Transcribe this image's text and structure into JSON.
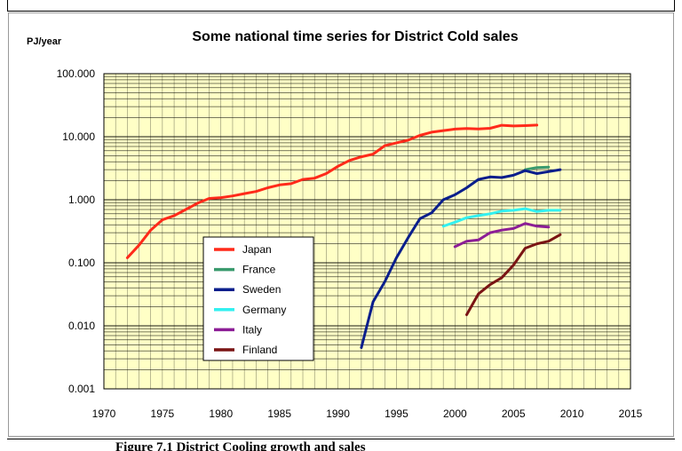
{
  "caption": "Figure 7.1 District Cooling growth and sales",
  "chart_data": {
    "type": "line",
    "title": "Some national time series for District Cold sales",
    "ylabel": "PJ/year",
    "xlabel": "",
    "xlim": [
      1970,
      2015
    ],
    "ylim": [
      0.001,
      100
    ],
    "yscale": "log",
    "grid": true,
    "legend_position": "lower-left",
    "x_ticks": [
      "1970",
      "1975",
      "1980",
      "1985",
      "1990",
      "1995",
      "2000",
      "2005",
      "2010",
      "2015"
    ],
    "y_ticks": [
      "0.001",
      "0.010",
      "0.100",
      "1.000",
      "10.000",
      "100.000"
    ],
    "colors": {
      "plot_background": "#ffffc6",
      "grid": "#000000"
    },
    "series": [
      {
        "name": "Japan",
        "color": "#ff2a1a",
        "points": [
          [
            1972,
            0.12
          ],
          [
            1973,
            0.19
          ],
          [
            1974,
            0.33
          ],
          [
            1975,
            0.48
          ],
          [
            1976,
            0.56
          ],
          [
            1977,
            0.7
          ],
          [
            1978,
            0.88
          ],
          [
            1979,
            1.05
          ],
          [
            1980,
            1.08
          ],
          [
            1981,
            1.15
          ],
          [
            1982,
            1.25
          ],
          [
            1983,
            1.35
          ],
          [
            1984,
            1.55
          ],
          [
            1985,
            1.72
          ],
          [
            1986,
            1.8
          ],
          [
            1987,
            2.1
          ],
          [
            1988,
            2.2
          ],
          [
            1989,
            2.6
          ],
          [
            1990,
            3.4
          ],
          [
            1991,
            4.2
          ],
          [
            1992,
            4.8
          ],
          [
            1993,
            5.3
          ],
          [
            1994,
            7.2
          ],
          [
            1995,
            8.0
          ],
          [
            1996,
            8.8
          ],
          [
            1997,
            10.5
          ],
          [
            1998,
            11.8
          ],
          [
            1999,
            12.5
          ],
          [
            2000,
            13.2
          ],
          [
            2001,
            13.5
          ],
          [
            2002,
            13.3
          ],
          [
            2003,
            13.6
          ],
          [
            2004,
            15.2
          ],
          [
            2005,
            14.8
          ],
          [
            2006,
            15.0
          ],
          [
            2007,
            15.3
          ]
        ]
      },
      {
        "name": "France",
        "color": "#3a9a6e",
        "points": [
          [
            2006,
            3.0
          ],
          [
            2007,
            3.25
          ],
          [
            2008,
            3.3
          ]
        ]
      },
      {
        "name": "Sweden",
        "color": "#0a1e8c",
        "points": [
          [
            1992,
            0.0045
          ],
          [
            1993,
            0.024
          ],
          [
            1994,
            0.05
          ],
          [
            1995,
            0.12
          ],
          [
            1996,
            0.25
          ],
          [
            1997,
            0.5
          ],
          [
            1998,
            0.62
          ],
          [
            1999,
            1.0
          ],
          [
            2000,
            1.2
          ],
          [
            2001,
            1.55
          ],
          [
            2002,
            2.1
          ],
          [
            2003,
            2.3
          ],
          [
            2004,
            2.25
          ],
          [
            2005,
            2.45
          ],
          [
            2006,
            2.9
          ],
          [
            2007,
            2.6
          ],
          [
            2008,
            2.8
          ],
          [
            2009,
            3.0
          ]
        ]
      },
      {
        "name": "Germany",
        "color": "#33f0f0",
        "points": [
          [
            1999,
            0.38
          ],
          [
            2000,
            0.44
          ],
          [
            2001,
            0.52
          ],
          [
            2002,
            0.56
          ],
          [
            2003,
            0.6
          ],
          [
            2004,
            0.66
          ],
          [
            2005,
            0.68
          ],
          [
            2006,
            0.72
          ],
          [
            2007,
            0.65
          ],
          [
            2008,
            0.68
          ],
          [
            2009,
            0.68
          ]
        ]
      },
      {
        "name": "Italy",
        "color": "#8c1e96",
        "points": [
          [
            2000,
            0.18
          ],
          [
            2001,
            0.22
          ],
          [
            2002,
            0.23
          ],
          [
            2003,
            0.3
          ],
          [
            2004,
            0.33
          ],
          [
            2005,
            0.35
          ],
          [
            2006,
            0.42
          ],
          [
            2007,
            0.38
          ],
          [
            2008,
            0.37
          ]
        ]
      },
      {
        "name": "Finland",
        "color": "#7a1414",
        "points": [
          [
            2001,
            0.015
          ],
          [
            2002,
            0.032
          ],
          [
            2003,
            0.045
          ],
          [
            2004,
            0.058
          ],
          [
            2005,
            0.092
          ],
          [
            2006,
            0.17
          ],
          [
            2007,
            0.2
          ],
          [
            2008,
            0.22
          ],
          [
            2009,
            0.28
          ]
        ]
      }
    ]
  }
}
